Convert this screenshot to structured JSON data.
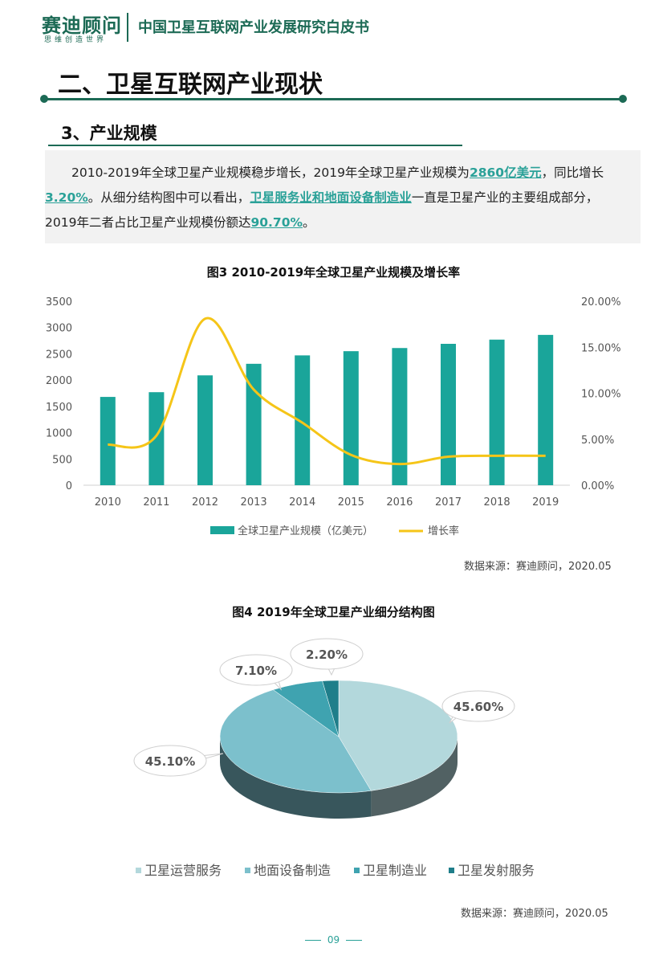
{
  "header": {
    "logo_text": "赛迪顾问",
    "logo_slogan": "思维创造世界",
    "doc_title": "中国卫星互联网产业发展研究白皮书"
  },
  "section": {
    "heading": "二、卫星互联网产业现状"
  },
  "subsection": {
    "heading": "3、产业规模"
  },
  "paragraph": {
    "p1": "2010-2019年全球卫星产业规模稳步增长，2019年全球卫星产业规模为",
    "h1": "2860亿美元",
    "p2": "，同比增长",
    "h2": "3.20%",
    "p3": "。从细分结构图中可以看出，",
    "h3": "卫星服务业和地面设备制造业",
    "p4": "一直是卫星产业的主要组成部分，2019年二者占比卫星产业规模份额达",
    "h4": "90.70%",
    "p5": "。"
  },
  "figure3": {
    "title": "图3  2010-2019年全球卫星产业规模及增长率",
    "source": "数据来源：赛迪顾问，2020.05",
    "colors": {
      "bar": "#1aa59a",
      "line": "#f5c518"
    },
    "chart_data": {
      "type": "bar",
      "categories": [
        "2010",
        "2011",
        "2012",
        "2013",
        "2014",
        "2015",
        "2016",
        "2017",
        "2018",
        "2019"
      ],
      "series": [
        {
          "name": "全球卫星产业规模（亿美元）",
          "type": "bar",
          "axis": "left",
          "values": [
            1680,
            1770,
            2090,
            2310,
            2470,
            2550,
            2610,
            2690,
            2770,
            2860
          ]
        },
        {
          "name": "增长率",
          "type": "line",
          "axis": "right",
          "values": [
            4.4,
            5.4,
            18.1,
            10.4,
            6.8,
            3.3,
            2.3,
            3.1,
            3.2,
            3.2
          ]
        }
      ],
      "y_left": {
        "min": 0,
        "max": 3500,
        "ticks": [
          "0",
          "500",
          "1000",
          "1500",
          "2000",
          "2500",
          "3000",
          "3500"
        ]
      },
      "y_right": {
        "min": 0,
        "max": 20,
        "ticks": [
          "0.00%",
          "5.00%",
          "10.00%",
          "15.00%",
          "20.00%"
        ]
      },
      "grid": false,
      "legend": "bottom"
    }
  },
  "figure4": {
    "title": "图4  2019年全球卫星产业细分结构图",
    "source": "数据来源：赛迪顾问，2020.05",
    "chart_data": {
      "type": "pie",
      "slices": [
        {
          "label": "卫星运营服务",
          "value": 45.6,
          "display": "45.60%",
          "color": "#b3d8dc"
        },
        {
          "label": "地面设备制造",
          "value": 45.1,
          "display": "45.10%",
          "color": "#7cc0cc"
        },
        {
          "label": "卫星制造业",
          "value": 7.1,
          "display": "7.10%",
          "color": "#3fa3b0"
        },
        {
          "label": "卫星发射服务",
          "value": 2.2,
          "display": "2.20%",
          "color": "#1f7e8a"
        }
      ],
      "legend": "bottom"
    }
  },
  "footer": {
    "page": "09"
  }
}
